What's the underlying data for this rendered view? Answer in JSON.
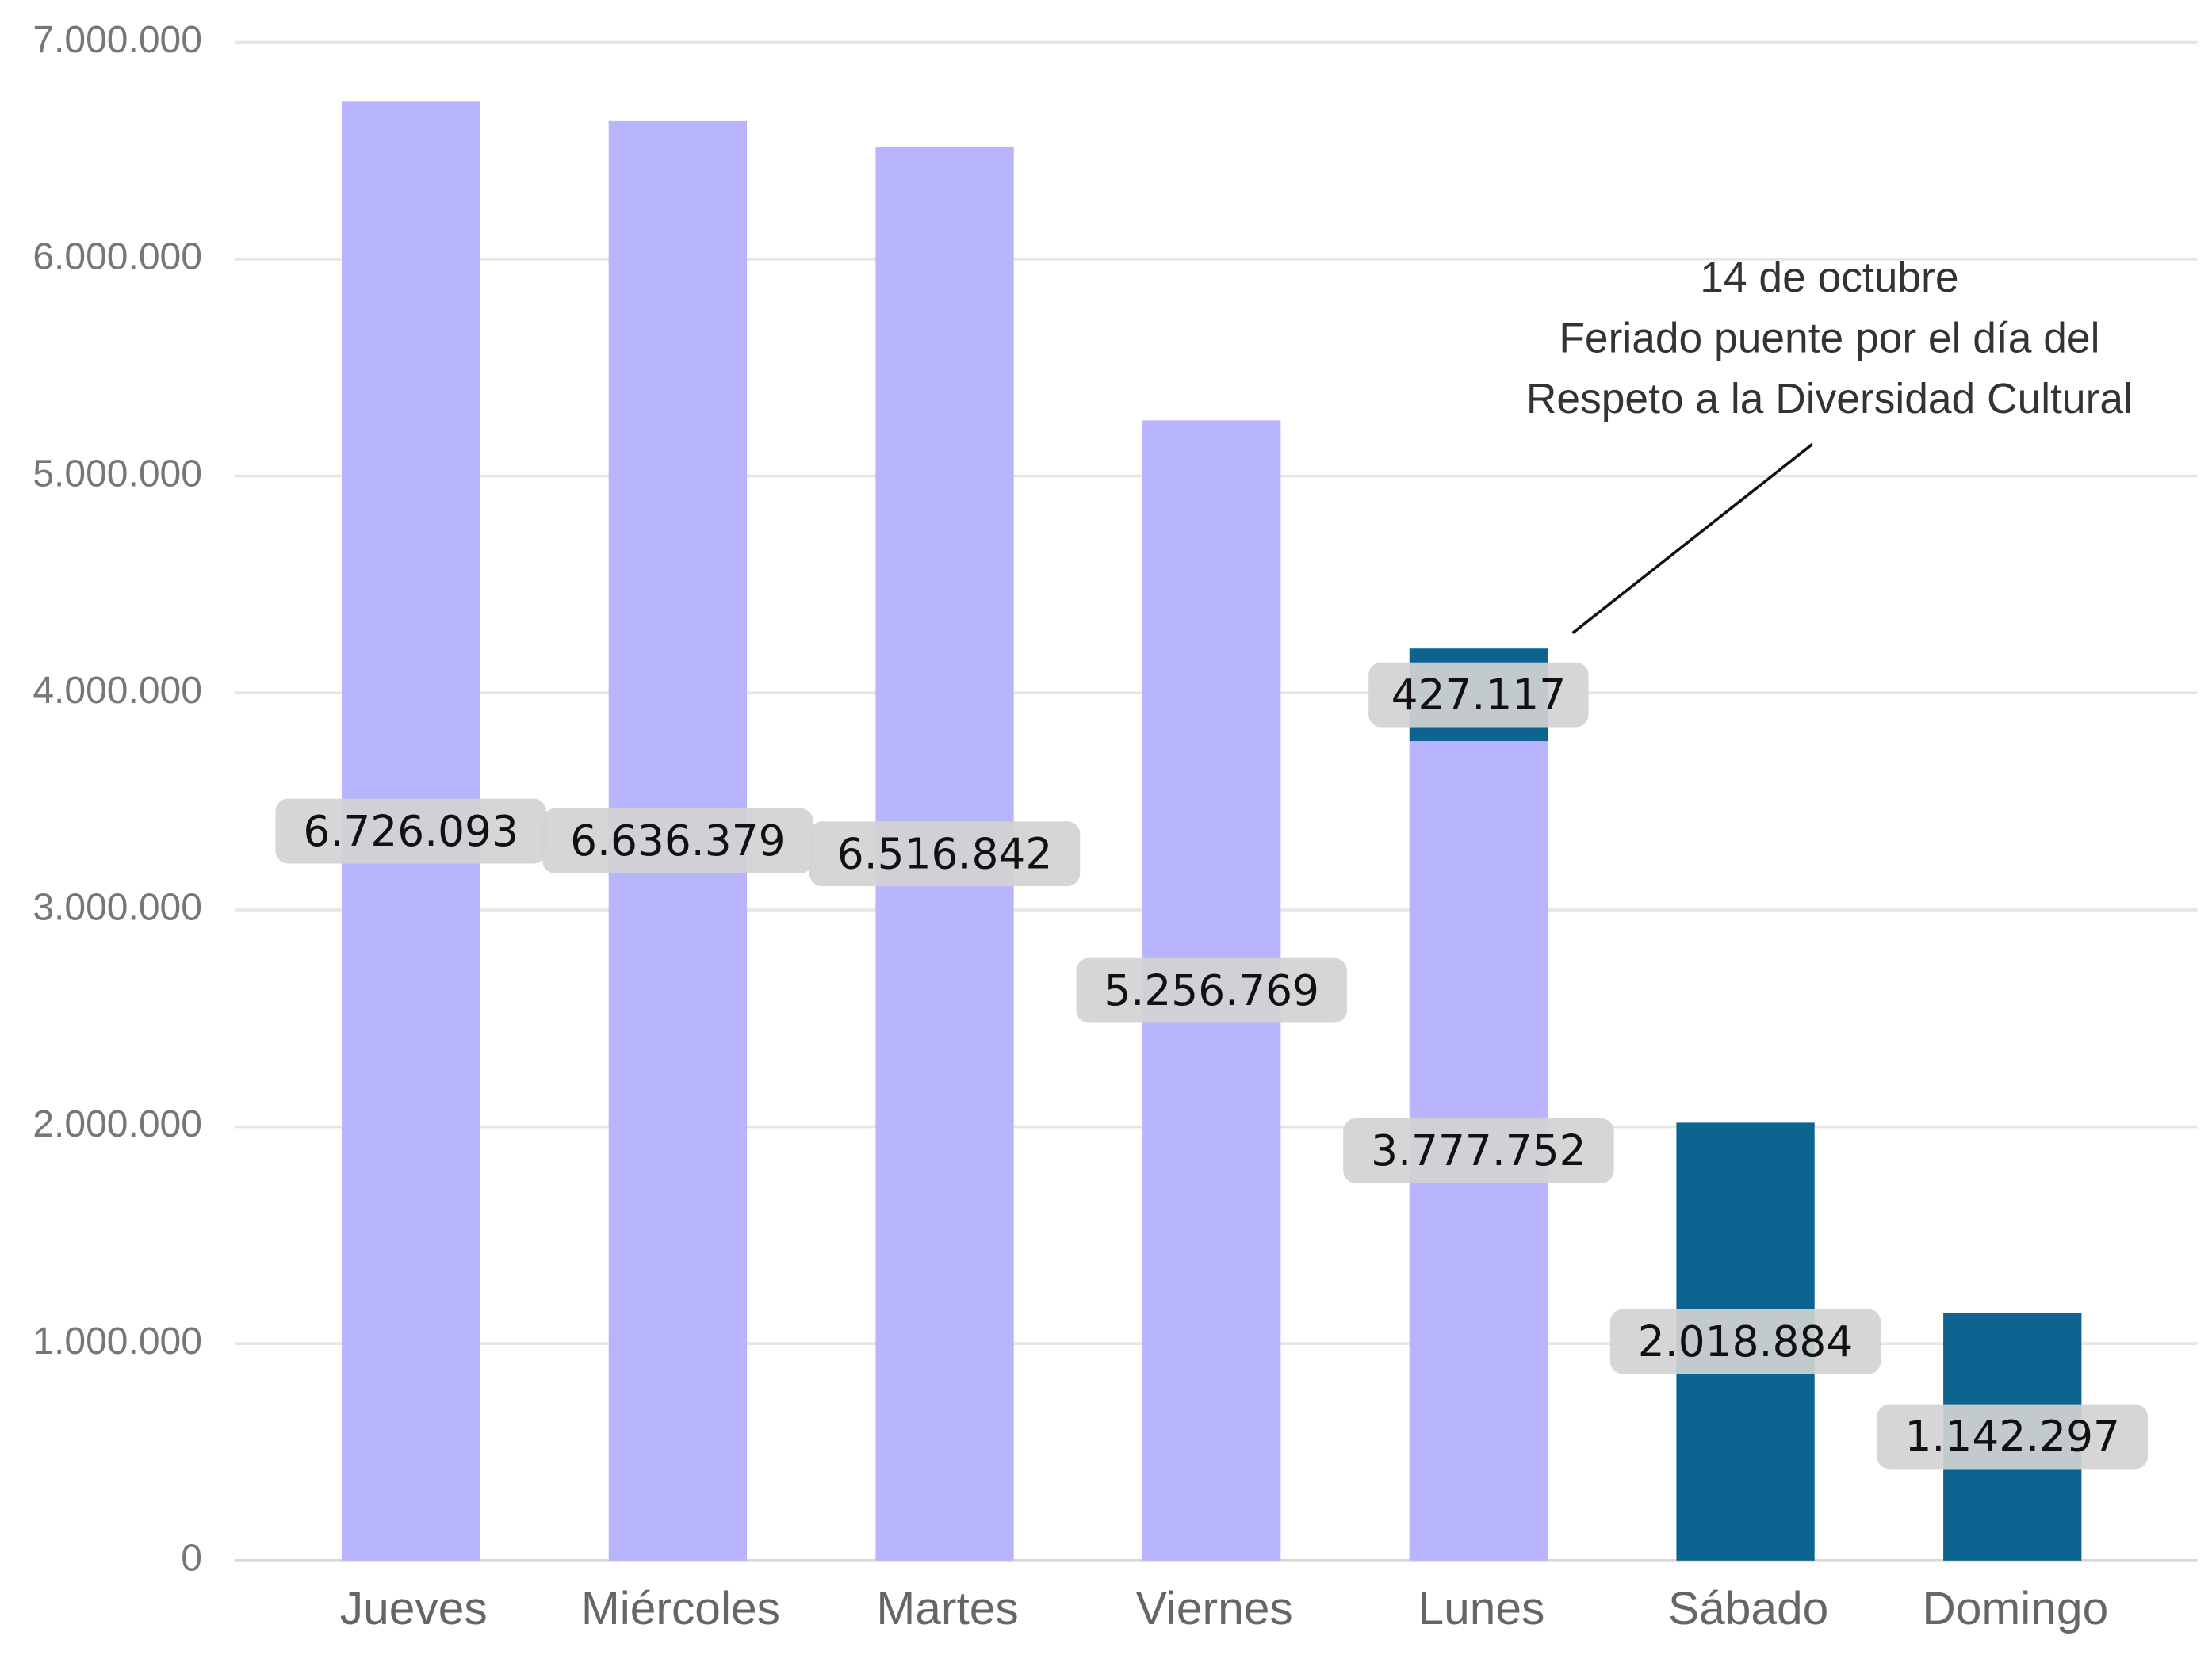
{
  "chart_data": {
    "type": "bar",
    "stacked": true,
    "categories": [
      "Jueves",
      "Miércoles",
      "Martes",
      "Viernes",
      "Lunes",
      "Sábado",
      "Domingo"
    ],
    "series": [
      {
        "color": "#b8b4fd",
        "values": [
          6726093,
          6636379,
          6516842,
          5256769,
          3777752,
          null,
          null
        ],
        "value_labels": [
          "6.726.093",
          "6.636.379",
          "6.516.842",
          "5.256.769",
          "3.777.752",
          null,
          null
        ]
      },
      {
        "color": "#0e6491",
        "values": [
          null,
          null,
          null,
          null,
          427117,
          2018884,
          1142297
        ],
        "value_labels": [
          null,
          null,
          null,
          null,
          "427.117",
          "2.018.884",
          "1.142.297"
        ]
      }
    ],
    "ylim": [
      0,
      7000000
    ],
    "yticks": [
      0,
      {
        "value": 1000000,
        "label": "1.000.000"
      },
      {
        "value": 2000000,
        "label": "2.000.000"
      },
      {
        "value": 3000000,
        "label": "3.000.000"
      },
      {
        "value": 4000000,
        "label": "4.000.000"
      },
      {
        "value": 5000000,
        "label": "5.000.000"
      },
      {
        "value": 6000000,
        "label": "6.000.000"
      },
      {
        "value": 7000000,
        "label": "7.000.000"
      }
    ],
    "grid": true,
    "annotation": {
      "lines": [
        "14 de octubre",
        "Feriado puente por el día del",
        "Respeto a la Diversidad Cultural"
      ]
    }
  }
}
